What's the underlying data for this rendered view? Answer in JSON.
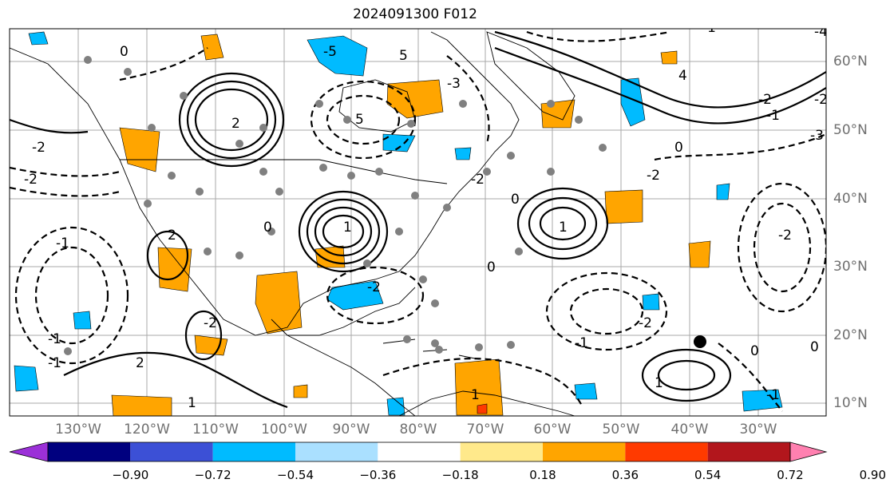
{
  "title": "2024091300 F012",
  "longitude_labels": [
    "130°W",
    "120°W",
    "110°W",
    "100°W",
    "90°W",
    "80°W",
    "70°W",
    "60°W",
    "50°W",
    "40°W",
    "30°W"
  ],
  "latitude_labels": [
    "60°N",
    "50°N",
    "40°N",
    "30°N",
    "20°N",
    "10°N"
  ],
  "colorbar": {
    "tick_labels": [
      "−0.90",
      "−0.72",
      "−0.54",
      "−0.36",
      "−0.18",
      "0.18",
      "0.36",
      "0.54",
      "0.72",
      "0.90"
    ],
    "colors": [
      "#9b30d8",
      "#00007f",
      "#3c50d6",
      "#00bbff",
      "#aae0ff",
      "#ffffff",
      "#ffe98b",
      "#ffa500",
      "#ff3a00",
      "#b2161c",
      "#ff80b0"
    ],
    "extend": "both"
  },
  "contour_labels": [
    "0",
    "-2",
    "-2",
    "-3",
    "-1",
    "-1",
    "-1",
    "2",
    "2",
    "1",
    "1",
    "1",
    "2",
    "-2",
    "-2",
    "-2",
    "0",
    "0",
    "0",
    "4",
    "5",
    "5",
    "-5",
    "-4",
    "-2",
    "-2",
    "-1",
    "-1",
    "-1",
    "0",
    "0",
    "-2",
    "-3",
    "1",
    "-1",
    "1",
    "-2",
    "-2",
    "0"
  ],
  "colors": {
    "land_outline": "#000000",
    "grid": "#a0a0a0",
    "station": "#808080",
    "marker": "#000000"
  }
}
